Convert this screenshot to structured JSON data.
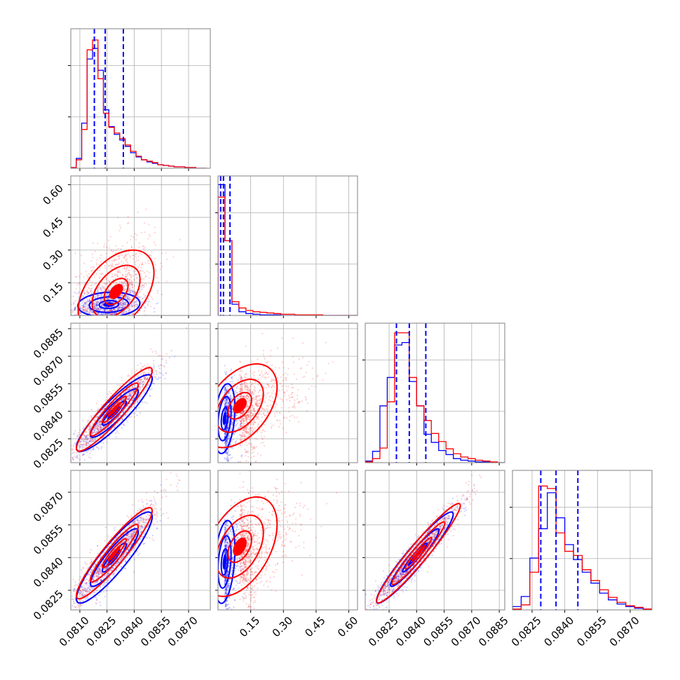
{
  "chart_data": {
    "type": "corner",
    "grid": true,
    "colors": {
      "series_a": "#0000ff",
      "series_b": "#ff0000",
      "grid": "#b0b0b0",
      "frame": "#808080"
    },
    "series": [
      {
        "name": "",
        "color": "#0000ff"
      },
      {
        "name": "",
        "color": "#ff0000"
      }
    ],
    "axes": {
      "p1": {
        "range": [
          0.0805,
          0.0882
        ],
        "ticks": [
          "0.0810",
          "0.0825",
          "0.0840",
          "0.0855",
          "0.0870"
        ],
        "tick_values": [
          0.081,
          0.0825,
          0.084,
          0.0855,
          0.087
        ]
      },
      "p2": {
        "range": [
          0.0,
          0.64
        ],
        "ticks": [
          "0.15",
          "0.30",
          "0.45",
          "0.60"
        ],
        "tick_values": [
          0.15,
          0.3,
          0.45,
          0.6
        ]
      },
      "p3": {
        "range": [
          0.0812,
          0.0888
        ],
        "ticks": [
          "0.0825",
          "0.0840",
          "0.0855",
          "0.0870",
          "0.0885"
        ],
        "tick_values": [
          0.0825,
          0.084,
          0.0855,
          0.087,
          0.0885
        ]
      },
      "p4": {
        "range": [
          0.0816,
          0.088
        ],
        "ticks": [
          "0.0825",
          "0.0840",
          "0.0855",
          "0.0870"
        ],
        "tick_values": [
          0.0825,
          0.084,
          0.0855,
          0.087
        ]
      }
    },
    "diagonal": [
      {
        "param": "p1",
        "quantile_lines": [
          0.0818,
          0.0824,
          0.0834
        ],
        "bins": [
          0.0805,
          0.0808,
          0.0811,
          0.0814,
          0.0817,
          0.082,
          0.0823,
          0.0826,
          0.0829,
          0.0832,
          0.0835,
          0.0838,
          0.0841,
          0.0844,
          0.0847,
          0.085,
          0.0853,
          0.0856,
          0.0859,
          0.0862,
          0.0865,
          0.0868,
          0.0871,
          0.0874,
          0.0877,
          0.088
        ],
        "counts_blue": [
          1,
          14,
          64,
          155,
          170,
          139,
          83,
          59,
          48,
          40,
          31,
          22,
          16,
          12,
          9,
          7,
          5,
          4,
          3,
          2,
          2,
          1,
          1,
          0,
          0
        ],
        "counts_red": [
          1,
          12,
          55,
          168,
          182,
          127,
          78,
          58,
          50,
          42,
          33,
          24,
          17,
          12,
          10,
          8,
          5,
          4,
          3,
          2,
          2,
          1,
          1,
          0,
          0
        ],
        "ymax": 190
      },
      {
        "param": "p2",
        "quantile_lines": [
          0.012,
          0.025,
          0.055
        ],
        "bins": [
          0.0,
          0.032,
          0.064,
          0.096,
          0.128,
          0.16,
          0.192,
          0.224,
          0.256,
          0.288,
          0.32,
          0.352,
          0.384,
          0.416,
          0.448,
          0.48,
          0.512,
          0.544,
          0.576,
          0.608,
          0.64
        ],
        "counts_blue": [
          210,
          120,
          18,
          6,
          3,
          2,
          1,
          1,
          1,
          0,
          0,
          0,
          0,
          0,
          0,
          0,
          0,
          0,
          0,
          0
        ],
        "counts_red": [
          190,
          120,
          22,
          12,
          8,
          6,
          5,
          4,
          3,
          2,
          2,
          1,
          1,
          1,
          1,
          0,
          0,
          0,
          0,
          0
        ],
        "ymax": 215
      },
      {
        "param": "p3",
        "quantile_lines": [
          0.0829,
          0.0836,
          0.0845
        ],
        "bins": [
          0.0812,
          0.0816,
          0.082,
          0.0824,
          0.0828,
          0.0832,
          0.0836,
          0.084,
          0.0844,
          0.0848,
          0.0852,
          0.0856,
          0.086,
          0.0864,
          0.0868,
          0.0872,
          0.0876,
          0.088,
          0.0884,
          0.0888
        ],
        "counts_blue": [
          2,
          14,
          70,
          105,
          145,
          148,
          100,
          70,
          35,
          25,
          15,
          10,
          5,
          3,
          2,
          1,
          1,
          0,
          0
        ],
        "counts_red": [
          1,
          5,
          18,
          75,
          160,
          160,
          105,
          70,
          52,
          36,
          26,
          17,
          11,
          7,
          5,
          3,
          2,
          1,
          0
        ],
        "ymax": 165
      },
      {
        "param": "p4",
        "quantile_lines": [
          0.0829,
          0.0836,
          0.0846
        ],
        "bins": [
          0.0816,
          0.082,
          0.0824,
          0.0828,
          0.0832,
          0.0836,
          0.084,
          0.0844,
          0.0848,
          0.0852,
          0.0856,
          0.086,
          0.0864,
          0.0868,
          0.0872,
          0.0876,
          0.088
        ],
        "counts_blue": [
          4,
          16,
          62,
          97,
          140,
          110,
          78,
          60,
          45,
          32,
          20,
          12,
          7,
          4,
          2,
          1
        ],
        "counts_red": [
          1,
          6,
          45,
          148,
          145,
          92,
          70,
          65,
          48,
          35,
          24,
          15,
          9,
          5,
          3,
          1
        ],
        "ymax": 160
      }
    ],
    "pairs": [
      {
        "x": "p1",
        "y": "p2",
        "blue": {
          "mean": [
            0.0826,
            0.05
          ],
          "sd": [
            0.0009,
            0.03
          ],
          "rho": 0.1
        },
        "red": {
          "mean": [
            0.083,
            0.11
          ],
          "sd": [
            0.0011,
            0.1
          ],
          "rho": 0.45
        }
      },
      {
        "x": "p1",
        "y": "p3",
        "blue": {
          "mean": [
            0.0829,
            0.0839
          ],
          "sd": [
            0.0011,
            0.0011
          ],
          "rho": 0.9
        },
        "red": {
          "mean": [
            0.0829,
            0.0841
          ],
          "sd": [
            0.0011,
            0.0012
          ],
          "rho": 0.93
        }
      },
      {
        "x": "p2",
        "y": "p3",
        "blue": {
          "mean": [
            0.03,
            0.0836
          ],
          "sd": [
            0.025,
            0.001
          ],
          "rho": 0.3
        },
        "red": {
          "mean": [
            0.1,
            0.0843
          ],
          "sd": [
            0.09,
            0.0012
          ],
          "rho": 0.45
        }
      },
      {
        "x": "p1",
        "y": "p4",
        "blue": {
          "mean": [
            0.0829,
            0.084
          ],
          "sd": [
            0.0011,
            0.0011
          ],
          "rho": 0.9
        },
        "red": {
          "mean": [
            0.0829,
            0.0842
          ],
          "sd": [
            0.0011,
            0.0011
          ],
          "rho": 0.93
        }
      },
      {
        "x": "p2",
        "y": "p4",
        "blue": {
          "mean": [
            0.03,
            0.0838
          ],
          "sd": [
            0.025,
            0.001
          ],
          "rho": 0.3
        },
        "red": {
          "mean": [
            0.1,
            0.0845
          ],
          "sd": [
            0.09,
            0.0012
          ],
          "rho": 0.45
        }
      },
      {
        "x": "p3",
        "y": "p4",
        "blue": {
          "mean": [
            0.0839,
            0.084
          ],
          "sd": [
            0.0011,
            0.0011
          ],
          "rho": 0.95
        },
        "red": {
          "mean": [
            0.0841,
            0.0842
          ],
          "sd": [
            0.0012,
            0.0012
          ],
          "rho": 0.96
        }
      }
    ]
  }
}
